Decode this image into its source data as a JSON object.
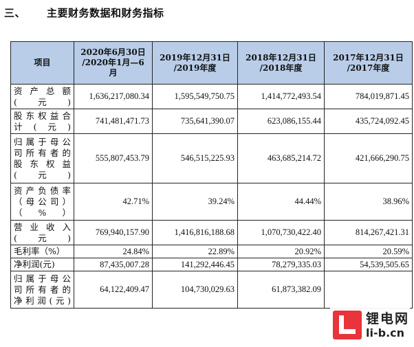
{
  "section": {
    "number": "三、",
    "title": "主要财务数据和财务指标"
  },
  "table": {
    "headers": [
      "项目",
      "2020年6月30日/2020年1月—6月",
      "2019年12月31日/2019年度",
      "2018年12月31日/2018年度",
      "2017年12月31日/2017年度"
    ],
    "header_lines": [
      [
        "项目"
      ],
      [
        "2020年6月30日",
        "/2020年1月—6",
        "月"
      ],
      [
        "2019年12月31日",
        "/2019年度"
      ],
      [
        "2018年12月31日",
        "/2018年度"
      ],
      [
        "2017年12月31日",
        "/2017年度"
      ]
    ],
    "rows": [
      {
        "label": "资产总额(元)",
        "values": [
          "1,636,217,080.34",
          "1,595,549,750.75",
          "1,414,772,493.54",
          "784,019,871.45"
        ]
      },
      {
        "label": "股东权益合计(元)",
        "values": [
          "741,481,471.73",
          "735,641,390.07",
          "623,086,155.44",
          "435,724,092.45"
        ]
      },
      {
        "label": "归属于母公司所有者的股东权益(元)",
        "values": [
          "555,807,453.79",
          "546,515,225.93",
          "463,685,214.72",
          "421,666,290.75"
        ]
      },
      {
        "label": "资产负债率（母公司）（%）",
        "values": [
          "42.71%",
          "39.24%",
          "44.44%",
          "38.96%"
        ]
      },
      {
        "label": "营业收入(元)",
        "values": [
          "769,940,157.90",
          "1,416,816,188.68",
          "1,070,730,422.40",
          "814,267,421.31"
        ]
      },
      {
        "label": "毛利率（%）",
        "values": [
          "24.84%",
          "22.89%",
          "20.92%",
          "20.59%"
        ]
      },
      {
        "label": "净利润(元)",
        "values": [
          "87,435,007.28",
          "141,292,446.45",
          "78,279,335.03",
          "54,539,505.65"
        ]
      },
      {
        "label": "归属于母公司所有者的净利润(元)",
        "values": [
          "64,122,409.47",
          "104,730,029.63",
          "61,873,382.09",
          ""
        ]
      }
    ],
    "row_label_lines": [
      [
        "资 产 总 额",
        "(元)"
      ],
      [
        "股东权益合",
        "计(元)"
      ],
      [
        "归属于母公",
        "司所有者的",
        "股 东 权 益",
        "(元)"
      ],
      [
        "资产负债率",
        "（母公司）",
        "（%）"
      ],
      [
        "营 业 收 入",
        "(元)"
      ],
      [
        "毛利率（%）"
      ],
      [
        "净利润(元)"
      ],
      [
        "归属于母公",
        "司所有者的",
        "净利润(元)"
      ]
    ]
  },
  "watermark": {
    "cn": "锂电网",
    "url": "li-b.cn"
  }
}
